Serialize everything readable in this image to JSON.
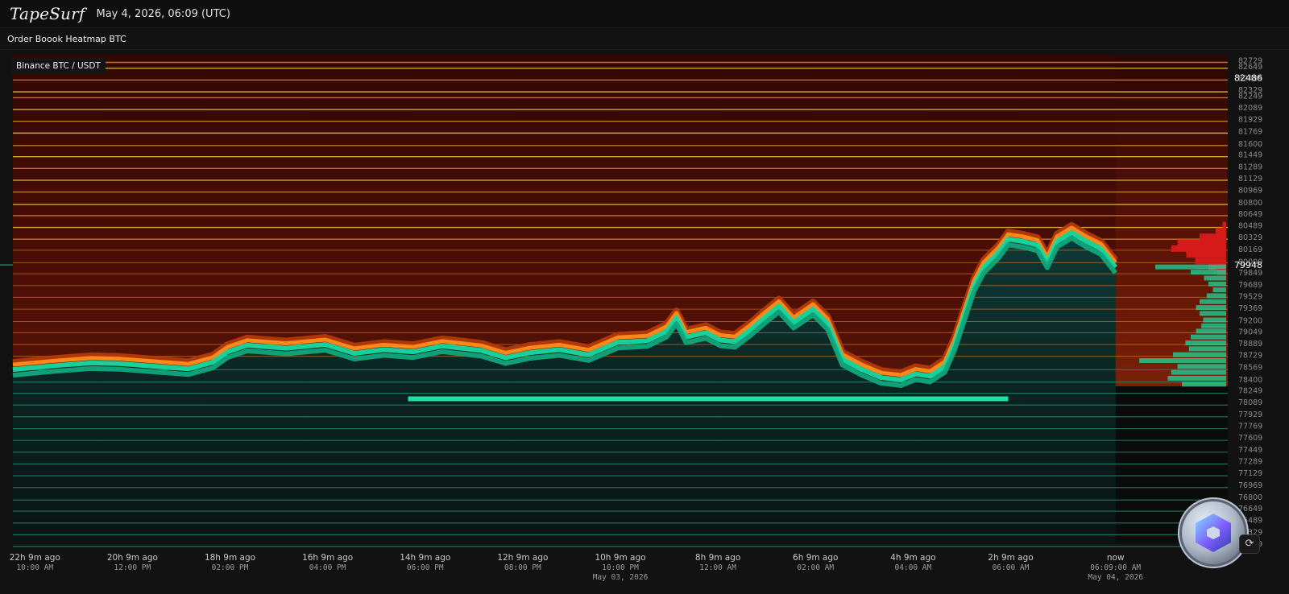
{
  "app": {
    "logo": "TapeSurf",
    "datetime": "May 4, 2026, 06:09 (UTC)",
    "page_title": "Order Boook Heatmap BTC",
    "exchange_label": "Binance BTC / USDT",
    "corner_button_glyph": "⟳"
  },
  "colors": {
    "background": "#0b0b0b",
    "bid_liquidity": "#19d9a0",
    "ask_liquidity": "#ff8c1a",
    "ask_band": "#e8c43a",
    "heat_low": "#3a0a06",
    "price_line": "#1bc48e"
  },
  "chart_data": {
    "type": "heatmap",
    "title": "Order Boook Heatmap BTC",
    "subtitle": "Binance BTC / USDT",
    "ylim": [
      76180,
      82800
    ],
    "y_ticks": [
      82729,
      82649,
      82489,
      82329,
      82249,
      82089,
      81929,
      81769,
      81600,
      81449,
      81289,
      81129,
      80969,
      80800,
      80649,
      80489,
      80329,
      80169,
      80000,
      79849,
      79689,
      79529,
      79369,
      79200,
      79049,
      78889,
      78729,
      78569,
      78400,
      78249,
      78089,
      77929,
      77769,
      77609,
      77449,
      77289,
      77129,
      76969,
      76800,
      76649,
      76489,
      76329,
      76169
    ],
    "y_highlight_labels": [
      {
        "value": 82486,
        "label": "82486"
      },
      {
        "value": 79948,
        "label": "79948"
      }
    ],
    "x_ticks": [
      {
        "t": -22.15,
        "line1": "22h 9m ago",
        "line2": "10:00 AM",
        "line3": ""
      },
      {
        "t": -20.15,
        "line1": "20h 9m ago",
        "line2": "12:00 PM",
        "line3": ""
      },
      {
        "t": -18.15,
        "line1": "18h 9m ago",
        "line2": "02:00 PM",
        "line3": ""
      },
      {
        "t": -16.15,
        "line1": "16h 9m ago",
        "line2": "04:00 PM",
        "line3": ""
      },
      {
        "t": -14.15,
        "line1": "14h 9m ago",
        "line2": "06:00 PM",
        "line3": ""
      },
      {
        "t": -12.15,
        "line1": "12h 9m ago",
        "line2": "08:00 PM",
        "line3": ""
      },
      {
        "t": -10.15,
        "line1": "10h 9m ago",
        "line2": "10:00 PM",
        "line3": "May 03, 2026"
      },
      {
        "t": -8.15,
        "line1": "8h 9m ago",
        "line2": "12:00 AM",
        "line3": ""
      },
      {
        "t": -6.15,
        "line1": "6h 9m ago",
        "line2": "02:00 AM",
        "line3": ""
      },
      {
        "t": -4.15,
        "line1": "4h 9m ago",
        "line2": "04:00 AM",
        "line3": ""
      },
      {
        "t": -2.15,
        "line1": "2h 9m ago",
        "line2": "06:00 AM",
        "line3": ""
      },
      {
        "t": 0,
        "line1": "now",
        "line2": "06:09:00 AM",
        "line3": "May 04, 2026"
      }
    ],
    "xlim_hours": [
      -22.6,
      2.3
    ],
    "mid_price": [
      {
        "t": -22.6,
        "p": 78560
      },
      {
        "t": -21.8,
        "p": 78610
      },
      {
        "t": -21.0,
        "p": 78650
      },
      {
        "t": -20.4,
        "p": 78640
      },
      {
        "t": -19.6,
        "p": 78600
      },
      {
        "t": -19.0,
        "p": 78570
      },
      {
        "t": -18.5,
        "p": 78660
      },
      {
        "t": -18.2,
        "p": 78800
      },
      {
        "t": -17.8,
        "p": 78890
      },
      {
        "t": -17.0,
        "p": 78850
      },
      {
        "t": -16.2,
        "p": 78900
      },
      {
        "t": -15.6,
        "p": 78780
      },
      {
        "t": -15.0,
        "p": 78830
      },
      {
        "t": -14.4,
        "p": 78800
      },
      {
        "t": -13.8,
        "p": 78880
      },
      {
        "t": -13.0,
        "p": 78820
      },
      {
        "t": -12.5,
        "p": 78720
      },
      {
        "t": -12.0,
        "p": 78790
      },
      {
        "t": -11.4,
        "p": 78830
      },
      {
        "t": -10.8,
        "p": 78760
      },
      {
        "t": -10.2,
        "p": 78930
      },
      {
        "t": -9.6,
        "p": 78950
      },
      {
        "t": -9.2,
        "p": 79080
      },
      {
        "t": -9.0,
        "p": 79260
      },
      {
        "t": -8.8,
        "p": 79000
      },
      {
        "t": -8.4,
        "p": 79060
      },
      {
        "t": -8.1,
        "p": 78960
      },
      {
        "t": -7.8,
        "p": 78940
      },
      {
        "t": -7.5,
        "p": 79090
      },
      {
        "t": -7.2,
        "p": 79260
      },
      {
        "t": -6.9,
        "p": 79420
      },
      {
        "t": -6.6,
        "p": 79200
      },
      {
        "t": -6.2,
        "p": 79380
      },
      {
        "t": -5.9,
        "p": 79180
      },
      {
        "t": -5.6,
        "p": 78700
      },
      {
        "t": -5.2,
        "p": 78560
      },
      {
        "t": -4.8,
        "p": 78450
      },
      {
        "t": -4.4,
        "p": 78420
      },
      {
        "t": -4.1,
        "p": 78500
      },
      {
        "t": -3.8,
        "p": 78470
      },
      {
        "t": -3.5,
        "p": 78600
      },
      {
        "t": -3.3,
        "p": 78900
      },
      {
        "t": -3.1,
        "p": 79300
      },
      {
        "t": -2.9,
        "p": 79700
      },
      {
        "t": -2.7,
        "p": 79950
      },
      {
        "t": -2.4,
        "p": 80150
      },
      {
        "t": -2.2,
        "p": 80330
      },
      {
        "t": -1.9,
        "p": 80300
      },
      {
        "t": -1.6,
        "p": 80250
      },
      {
        "t": -1.4,
        "p": 80020
      },
      {
        "t": -1.2,
        "p": 80300
      },
      {
        "t": -0.9,
        "p": 80420
      },
      {
        "t": -0.6,
        "p": 80300
      },
      {
        "t": -0.3,
        "p": 80200
      },
      {
        "t": 0,
        "p": 79948
      }
    ],
    "strong_bid_level": {
      "price": 78130,
      "t_start": -14.5,
      "t_end": -2.2
    },
    "depth_profile": [
      {
        "price": 80489,
        "ask": 0.04,
        "bid": 0
      },
      {
        "price": 80409,
        "ask": 0.12,
        "bid": 0
      },
      {
        "price": 80329,
        "ask": 0.3,
        "bid": 0
      },
      {
        "price": 80249,
        "ask": 0.55,
        "bid": 0
      },
      {
        "price": 80169,
        "ask": 0.62,
        "bid": 0
      },
      {
        "price": 80089,
        "ask": 0.45,
        "bid": 0
      },
      {
        "price": 80000,
        "ask": 0.35,
        "bid": 0
      },
      {
        "price": 79920,
        "ask": 0.2,
        "bid": 0.8
      },
      {
        "price": 79849,
        "ask": 0.1,
        "bid": 0.4
      },
      {
        "price": 79769,
        "ask": 0,
        "bid": 0.25
      },
      {
        "price": 79689,
        "ask": 0,
        "bid": 0.2
      },
      {
        "price": 79609,
        "ask": 0,
        "bid": 0.15
      },
      {
        "price": 79529,
        "ask": 0,
        "bid": 0.22
      },
      {
        "price": 79449,
        "ask": 0,
        "bid": 0.3
      },
      {
        "price": 79369,
        "ask": 0,
        "bid": 0.34
      },
      {
        "price": 79289,
        "ask": 0,
        "bid": 0.3
      },
      {
        "price": 79200,
        "ask": 0,
        "bid": 0.26
      },
      {
        "price": 79120,
        "ask": 0,
        "bid": 0.28
      },
      {
        "price": 79049,
        "ask": 0,
        "bid": 0.34
      },
      {
        "price": 78969,
        "ask": 0,
        "bid": 0.4
      },
      {
        "price": 78889,
        "ask": 0,
        "bid": 0.46
      },
      {
        "price": 78809,
        "ask": 0,
        "bid": 0.42
      },
      {
        "price": 78729,
        "ask": 0,
        "bid": 0.6
      },
      {
        "price": 78649,
        "ask": 0,
        "bid": 0.98
      },
      {
        "price": 78569,
        "ask": 0,
        "bid": 0.55
      },
      {
        "price": 78489,
        "ask": 0,
        "bid": 0.62
      },
      {
        "price": 78409,
        "ask": 0,
        "bid": 0.66
      },
      {
        "price": 78329,
        "ask": 0,
        "bid": 0.5
      }
    ]
  }
}
